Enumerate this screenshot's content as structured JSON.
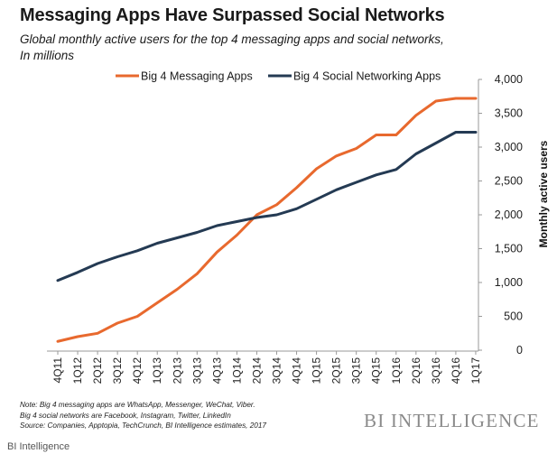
{
  "chart_data": {
    "type": "line",
    "title": "Messaging Apps Have Surpassed Social Networks",
    "subtitle_line1": "Global monthly active users for the top 4 messaging apps and social networks,",
    "subtitle_line2": "In millions",
    "ylabel": "Monthly active users",
    "ylim": [
      0,
      4000
    ],
    "yticks": [
      "0",
      "500",
      "1,000",
      "1,500",
      "2,000",
      "2,500",
      "3,000",
      "3,500",
      "4,000"
    ],
    "categories": [
      "4Q11",
      "1Q12",
      "2Q12",
      "3Q12",
      "4Q12",
      "1Q13",
      "2Q13",
      "3Q13",
      "4Q13",
      "1Q14",
      "2Q14",
      "3Q14",
      "4Q14",
      "1Q15",
      "2Q15",
      "3Q15",
      "4Q15",
      "1Q16",
      "2Q16",
      "3Q16",
      "4Q16",
      "1Q17"
    ],
    "series": [
      {
        "name": "Big 4 Messaging Apps",
        "color": "#e8692e",
        "values": [
          130,
          200,
          250,
          400,
          500,
          700,
          900,
          1130,
          1450,
          1700,
          2000,
          2150,
          2400,
          2680,
          2870,
          2980,
          3180,
          3180,
          3470,
          3680,
          3720,
          3720
        ]
      },
      {
        "name": "Big 4 Social Networking Apps",
        "color": "#243a53",
        "values": [
          1030,
          1150,
          1280,
          1380,
          1470,
          1580,
          1660,
          1740,
          1840,
          1900,
          1960,
          2000,
          2090,
          2230,
          2370,
          2480,
          2590,
          2670,
          2900,
          3060,
          3220,
          3220
        ]
      }
    ],
    "legend": "top",
    "grid": false
  },
  "notes": [
    "Note: Big 4 messaging apps are WhatsApp, Messenger, WeChat, Viber.",
    "Big 4 social networks are Facebook, Instagram, Twitter, LinkedIn",
    "Source: Companies,  Apptopia, TechCrunch,  BI Intelligence estimates, 2017"
  ],
  "brand_logo": "BI INTELLIGENCE",
  "footer_brand": "BI Intelligence"
}
